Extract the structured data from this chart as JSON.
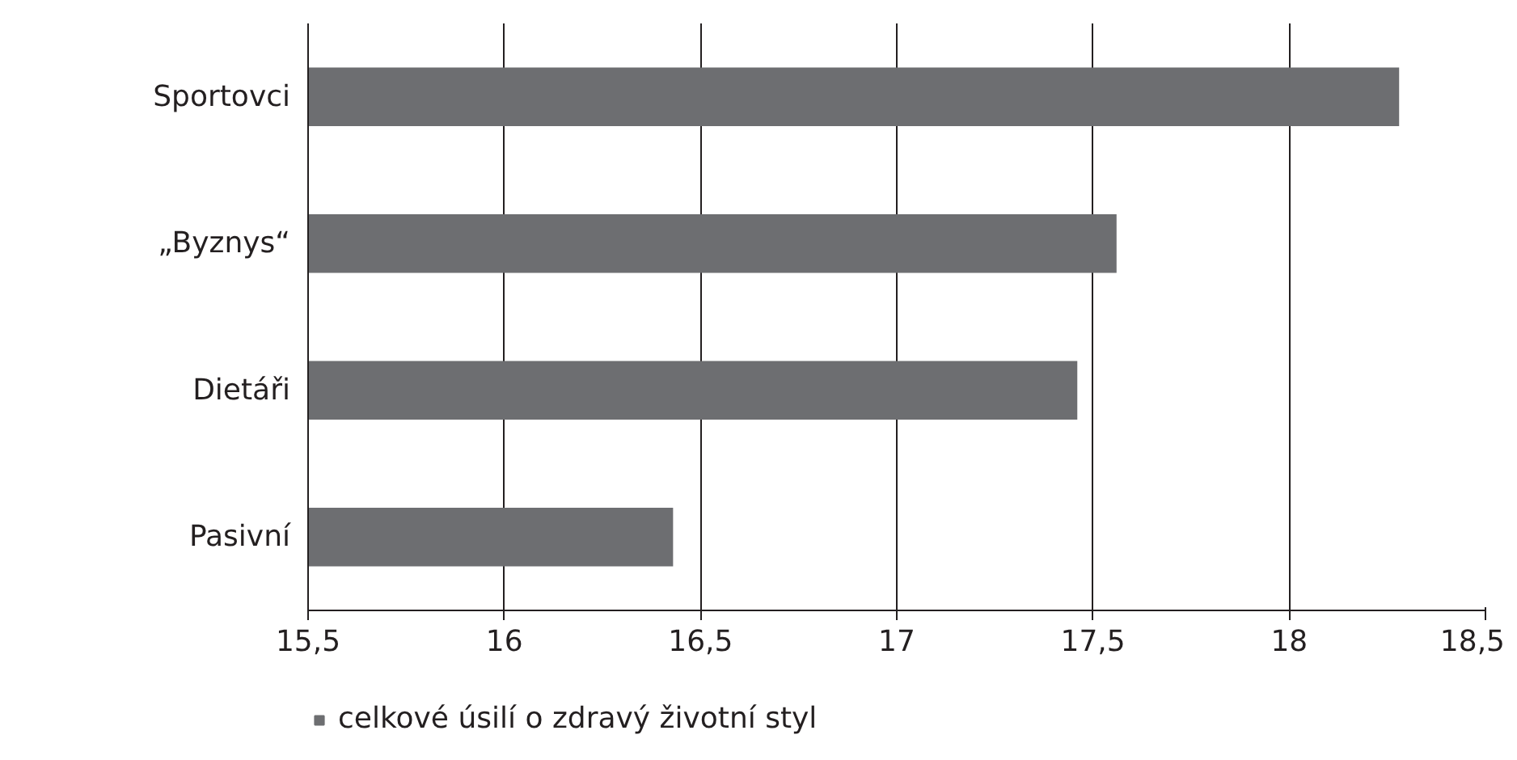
{
  "chart_data": {
    "type": "bar",
    "orientation": "horizontal",
    "categories": [
      "Sportovci",
      "„Byznys“",
      "Dietáři",
      "Pasivní"
    ],
    "series": [
      {
        "name": "celkové úsilí o zdravý životní styl",
        "color": "#6d6e71",
        "values": [
          18.28,
          17.56,
          17.46,
          16.43
        ]
      }
    ],
    "xlim": [
      15.5,
      18.5
    ],
    "xticks": [
      {
        "value": 15.5,
        "label": "15,5"
      },
      {
        "value": 16,
        "label": "16"
      },
      {
        "value": 16.5,
        "label": "16,5"
      },
      {
        "value": 17,
        "label": "17"
      },
      {
        "value": 17.5,
        "label": "17,5"
      },
      {
        "value": 18,
        "label": "18"
      },
      {
        "value": 18.5,
        "label": "18,5"
      }
    ],
    "grid": "x",
    "legend": "bottom"
  }
}
